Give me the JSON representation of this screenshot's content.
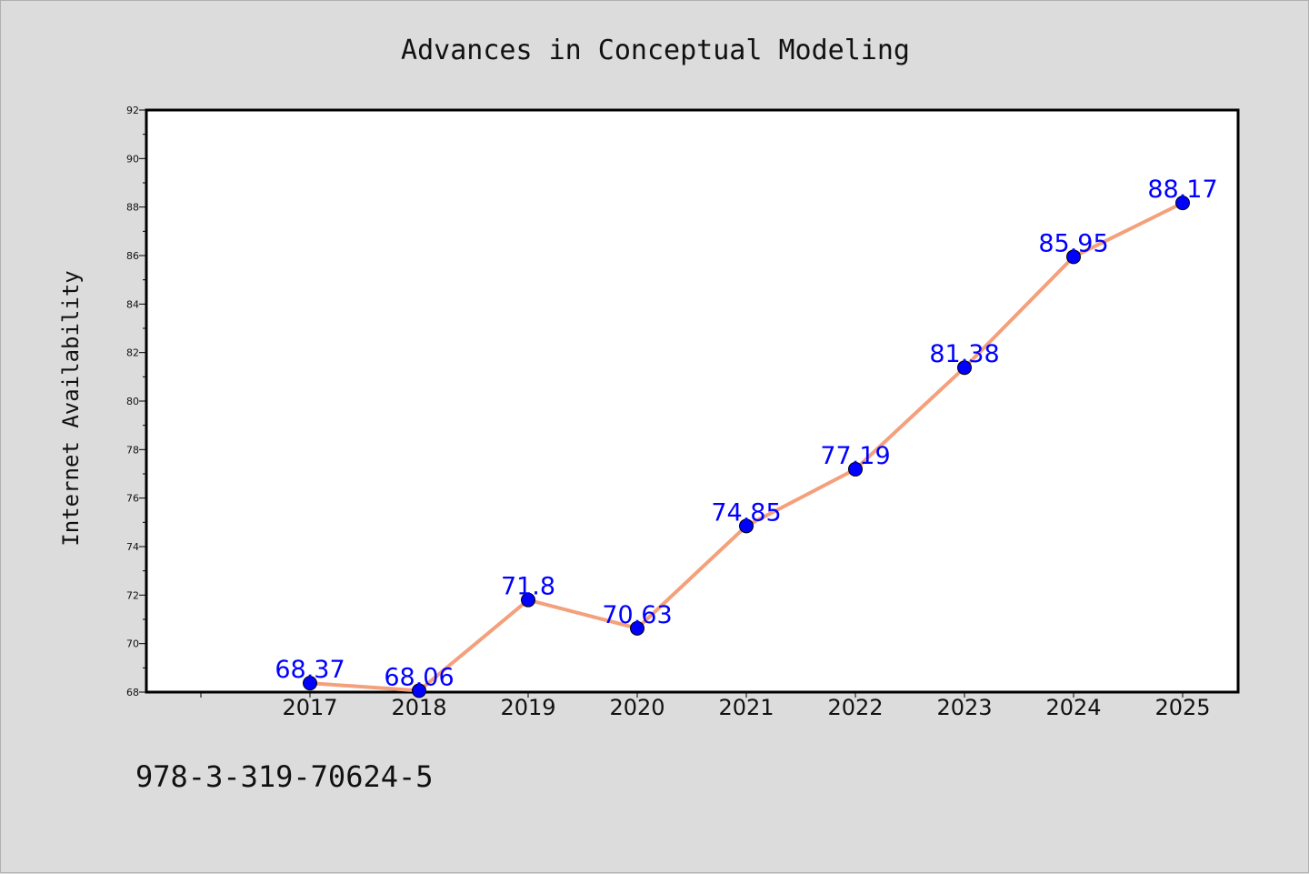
{
  "chart_data": {
    "type": "line",
    "title": "Advances in Conceptual Modeling",
    "xlabel": "",
    "ylabel": "Internet Availability",
    "categories": [
      "2017",
      "2018",
      "2019",
      "2020",
      "2021",
      "2022",
      "2023",
      "2024",
      "2025"
    ],
    "values": [
      68.37,
      68.06,
      71.8,
      70.63,
      74.85,
      77.19,
      81.38,
      85.95,
      88.17
    ],
    "data_labels": [
      "68.37",
      "68.06",
      "71.8",
      "70.63",
      "74.85",
      "77.19",
      "81.38",
      "85.95",
      "88.17"
    ],
    "ylim": [
      68,
      92
    ],
    "yticks": [
      68,
      70,
      72,
      74,
      76,
      78,
      80,
      82,
      84,
      86,
      88,
      90,
      92
    ],
    "grid": false,
    "line_color": "#f4a07c",
    "marker_color": "#0000ff",
    "label_color": "#0000ff",
    "background": "#dcdcdc",
    "plot_background": "#ffffff"
  },
  "footer": {
    "isbn": "978-3-319-70624-5"
  }
}
